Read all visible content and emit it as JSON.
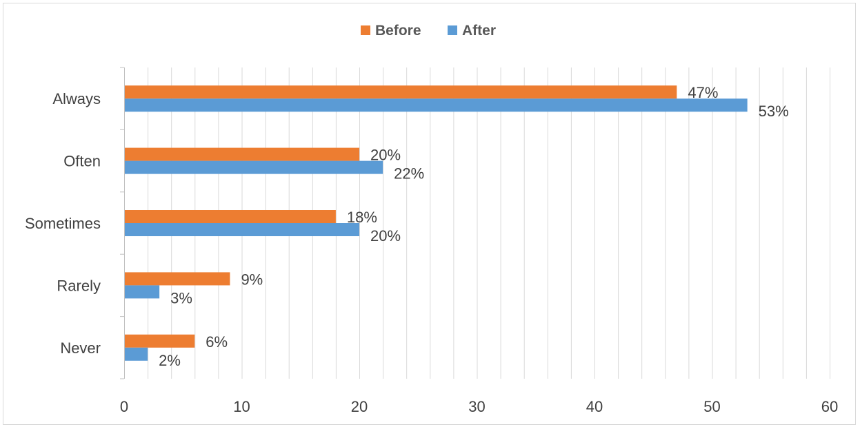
{
  "colors": {
    "before": "#ed7d31",
    "after": "#5b9bd5",
    "grid": "#d9d9d9",
    "axis": "#bfbfbf",
    "text": "#404040"
  },
  "chart_data": {
    "type": "bar",
    "orientation": "horizontal",
    "categories": [
      "Always",
      "Often",
      "Sometimes",
      "Rarely",
      "Never"
    ],
    "series": [
      {
        "name": "Before",
        "values": [
          47,
          20,
          18,
          9,
          6
        ],
        "labels": [
          "47%",
          "20%",
          "18%",
          "9%",
          "6%"
        ]
      },
      {
        "name": "After",
        "values": [
          53,
          22,
          20,
          3,
          2
        ],
        "labels": [
          "53%",
          "22%",
          "20%",
          "3%",
          "2%"
        ]
      }
    ],
    "xlim": [
      0,
      60
    ],
    "xticks": [
      0,
      10,
      20,
      30,
      40,
      50,
      60
    ],
    "xtick_labels": [
      "0",
      "10",
      "20",
      "30",
      "40",
      "50",
      "60"
    ],
    "minor_grid_step": 2,
    "grid": true,
    "legend": "top-center",
    "title": "",
    "xlabel": "",
    "ylabel": ""
  }
}
